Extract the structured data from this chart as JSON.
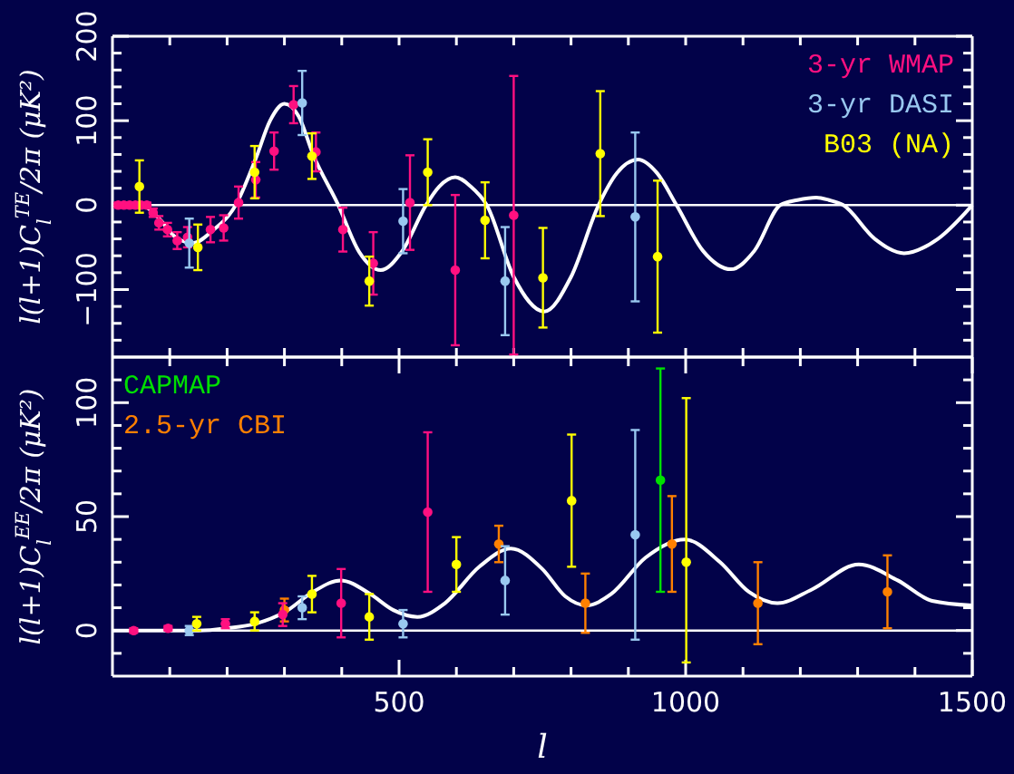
{
  "chart_data": [
    {
      "type": "scatter",
      "ylabel": "l(l+1)C$_{l}$$^{TE}$/2π (μK²)",
      "xlim": [
        0,
        1500
      ],
      "ylim": [
        -180,
        200
      ],
      "tick_labels": "y",
      "legend": "top right",
      "marker": "circle",
      "grid": false,
      "xticks": [
        {
          "value": 100,
          "label": null
        },
        {
          "value": 200,
          "label": null
        },
        {
          "value": 300,
          "label": null
        },
        {
          "value": 400,
          "label": null
        },
        {
          "value": 500,
          "label": null
        },
        {
          "value": 600,
          "label": null
        },
        {
          "value": 700,
          "label": null
        },
        {
          "value": 800,
          "label": null
        },
        {
          "value": 900,
          "label": null
        },
        {
          "value": 1000,
          "label": null
        },
        {
          "value": 1100,
          "label": null
        },
        {
          "value": 1200,
          "label": null
        },
        {
          "value": 1300,
          "label": null
        },
        {
          "value": 1400,
          "label": null
        }
      ],
      "yticks": [
        {
          "value": -160,
          "label": null
        },
        {
          "value": -140,
          "label": null
        },
        {
          "value": -120,
          "label": null
        },
        -100,
        {
          "value": -80,
          "label": null
        },
        {
          "value": -60,
          "label": null
        },
        {
          "value": -40,
          "label": null
        },
        {
          "value": -20,
          "label": null
        },
        0,
        {
          "value": 20,
          "label": null
        },
        {
          "value": 40,
          "label": null
        },
        {
          "value": 60,
          "label": null
        },
        {
          "value": 80,
          "label": null
        },
        100,
        {
          "value": 120,
          "label": null
        },
        {
          "value": 140,
          "label": null
        },
        {
          "value": 160,
          "label": null
        },
        {
          "value": 180,
          "label": null
        },
        200
      ],
      "ref_lines": [
        {
          "axis": "y",
          "value": 0,
          "color": "#ffffff"
        }
      ],
      "series": [
        {
          "type": "line",
          "marker": "none",
          "color": "#ffffff",
          "x": [
            0,
            50,
            80,
            110,
            140,
            175,
            215,
            250,
            275,
            300,
            325,
            350,
            394,
            430,
            468,
            505,
            547,
            570,
            598,
            625,
            653,
            700,
            753,
            800,
            848,
            880,
            917,
            950,
            984,
            1030,
            1079,
            1120,
            1165,
            1195,
            1228,
            1250,
            1275,
            1330,
            1381,
            1440,
            1500
          ],
          "values": [
            0,
            0,
            -15,
            -38,
            -45,
            -30,
            0,
            55,
            100,
            120,
            105,
            60,
            0,
            -55,
            -77,
            -55,
            0,
            22,
            33,
            22,
            0,
            -85,
            -126,
            -85,
            0,
            38,
            54,
            38,
            0,
            -54,
            -76,
            -54,
            0,
            6,
            9,
            6,
            0,
            -40,
            -57,
            -40,
            0
          ]
        },
        {
          "name": "3-yr WMAP",
          "color": "#ff1080",
          "x": [
            10,
            20,
            30,
            40,
            50,
            60,
            71,
            81,
            96,
            113,
            131,
            171,
            194,
            220,
            250,
            282,
            316,
            355,
            402,
            455,
            519,
            598,
            700
          ],
          "values": [
            0,
            0,
            0,
            0,
            0,
            0,
            -9,
            -21,
            -29,
            -42,
            -38,
            -29,
            -27,
            3,
            30,
            64,
            119,
            63,
            -29,
            -69,
            3,
            -77,
            -12
          ],
          "errors": [
            3,
            3,
            3,
            3,
            3,
            3,
            5,
            8,
            8,
            10,
            12,
            15,
            15,
            19,
            21,
            22,
            22,
            23,
            26,
            37,
            56,
            89,
            165
          ]
        },
        {
          "name": "3-yr DASI",
          "color": "#99c8f0",
          "x": [
            134,
            331,
            507,
            685,
            912
          ],
          "values": [
            -45,
            121,
            -19,
            -90,
            -14
          ],
          "errors": [
            29,
            38,
            38,
            64,
            100
          ]
        },
        {
          "name": "B03 (NA)",
          "color": "#ffff00",
          "x": [
            47,
            149,
            248,
            348,
            448,
            550,
            650,
            751,
            851,
            951
          ],
          "values": [
            22,
            -50,
            39,
            58,
            -90,
            39,
            -18,
            -86,
            61,
            -61
          ],
          "errors": [
            31,
            27,
            31,
            27,
            29,
            39,
            45,
            59,
            74,
            90
          ]
        }
      ]
    },
    {
      "type": "scatter",
      "ylabel": "l(l+1)C$_{l}$$^{EE}$/2π (μK²)",
      "xlabel": "l",
      "xlim": [
        0,
        1500
      ],
      "ylim": [
        -20,
        120
      ],
      "legend": "top left",
      "marker": "circle",
      "grid": false,
      "xticks": [
        {
          "value": 100,
          "label": null
        },
        {
          "value": 200,
          "label": null
        },
        {
          "value": 300,
          "label": null
        },
        {
          "value": 400,
          "label": null
        },
        500,
        {
          "value": 600,
          "label": null
        },
        {
          "value": 700,
          "label": null
        },
        {
          "value": 800,
          "label": null
        },
        {
          "value": 900,
          "label": null
        },
        1000,
        {
          "value": 1100,
          "label": null
        },
        {
          "value": 1200,
          "label": null
        },
        {
          "value": 1300,
          "label": null
        },
        {
          "value": 1400,
          "label": null
        },
        1500
      ],
      "yticks": [
        {
          "value": -10,
          "label": null
        },
        0,
        {
          "value": 10,
          "label": null
        },
        {
          "value": 20,
          "label": null
        },
        {
          "value": 30,
          "label": null
        },
        {
          "value": 40,
          "label": null
        },
        50,
        {
          "value": 60,
          "label": null
        },
        {
          "value": 70,
          "label": null
        },
        {
          "value": 80,
          "label": null
        },
        {
          "value": 90,
          "label": null
        },
        100,
        {
          "value": 110,
          "label": null
        }
      ],
      "ref_lines": [
        {
          "axis": "y",
          "value": 0,
          "color": "#ffffff"
        }
      ],
      "series": [
        {
          "type": "line",
          "marker": "none",
          "color": "#ffffff",
          "x": [
            0,
            150,
            200,
            250,
            300,
            350,
            398,
            450,
            490,
            532,
            580,
            640,
            695,
            750,
            790,
            827,
            870,
            930,
            998,
            1060,
            1110,
            1160,
            1220,
            1302,
            1370,
            1430,
            1500
          ],
          "values": [
            0,
            0,
            1,
            3,
            8,
            17,
            22,
            16,
            9,
            6,
            12,
            28,
            36,
            27,
            15,
            11,
            16,
            32,
            40,
            30,
            17,
            12,
            18,
            29,
            22,
            13,
            11
          ]
        },
        {
          "name": "CAPMAP",
          "color": "#00e000",
          "x": [
            956
          ],
          "values": [
            66
          ],
          "errors": [
            49
          ]
        },
        {
          "name": "2.5-yr CBI",
          "color": "#ff8000",
          "x": [
            300,
            674,
            825,
            976,
            1126,
            1352
          ],
          "values": [
            9,
            38,
            12,
            38,
            12,
            17
          ],
          "errors": [
            5,
            8,
            13,
            21,
            18,
            16
          ]
        },
        {
          "color": "#ff1080",
          "x": [
            37,
            97,
            197,
            297,
            399,
            550
          ],
          "values": [
            0,
            1,
            3,
            7,
            12,
            52
          ],
          "errors": [
            1,
            1,
            2,
            5,
            15,
            35
          ]
        },
        {
          "color": "#99c8f0",
          "x": [
            134,
            331,
            507,
            685,
            912
          ],
          "values": [
            0,
            10,
            3,
            22,
            42
          ],
          "errors": [
            2,
            5,
            6,
            15,
            46
          ]
        },
        {
          "color": "#ffff00",
          "x": [
            147,
            248,
            348,
            448,
            600,
            801,
            1001
          ],
          "values": [
            3,
            4,
            16,
            6,
            29,
            57,
            30
          ],
          "errors": [
            3,
            4,
            8,
            10,
            12,
            29,
            [
              -14,
              102
            ]
          ]
        }
      ]
    }
  ]
}
